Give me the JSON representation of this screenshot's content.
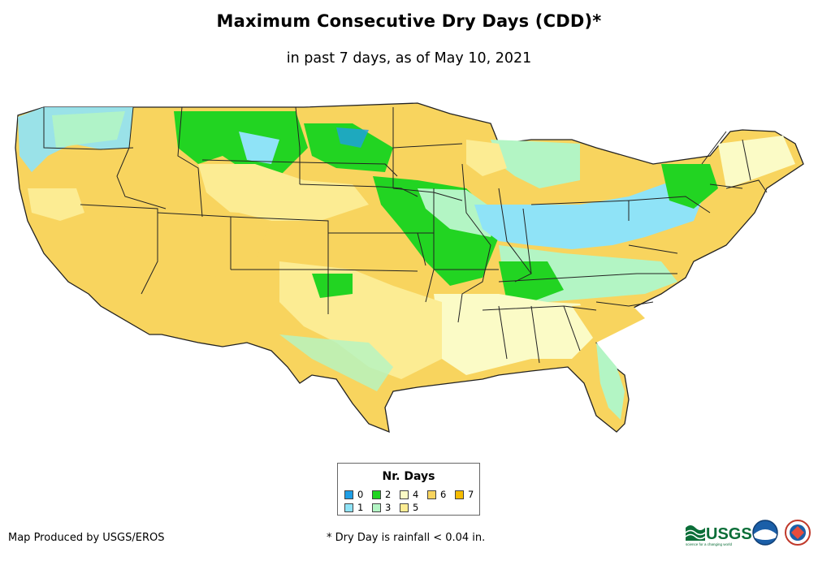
{
  "header": {
    "title": "Maximum Consecutive Dry Days (CDD)*",
    "subtitle": "in past 7 days, as of May 10, 2021"
  },
  "legend": {
    "title": "Nr. Days",
    "items": [
      {
        "label": "0",
        "color": "#1e9ee6"
      },
      {
        "label": "1",
        "color": "#8fe3f7"
      },
      {
        "label": "2",
        "color": "#22d422"
      },
      {
        "label": "3",
        "color": "#b3f5c4"
      },
      {
        "label": "4",
        "color": "#fbfbc6"
      },
      {
        "label": "5",
        "color": "#fcec93"
      },
      {
        "label": "6",
        "color": "#f8d45e"
      },
      {
        "label": "7",
        "color": "#f6bc00"
      }
    ]
  },
  "footer": {
    "credit": "Map Produced by USGS/EROS",
    "footnote": "* Dry Day is rainfall < 0.04 in.",
    "logo_text": "USGS",
    "logo_tagline": "science for a changing world"
  },
  "colors": {
    "border": "#222222",
    "background": "#ffffff"
  }
}
